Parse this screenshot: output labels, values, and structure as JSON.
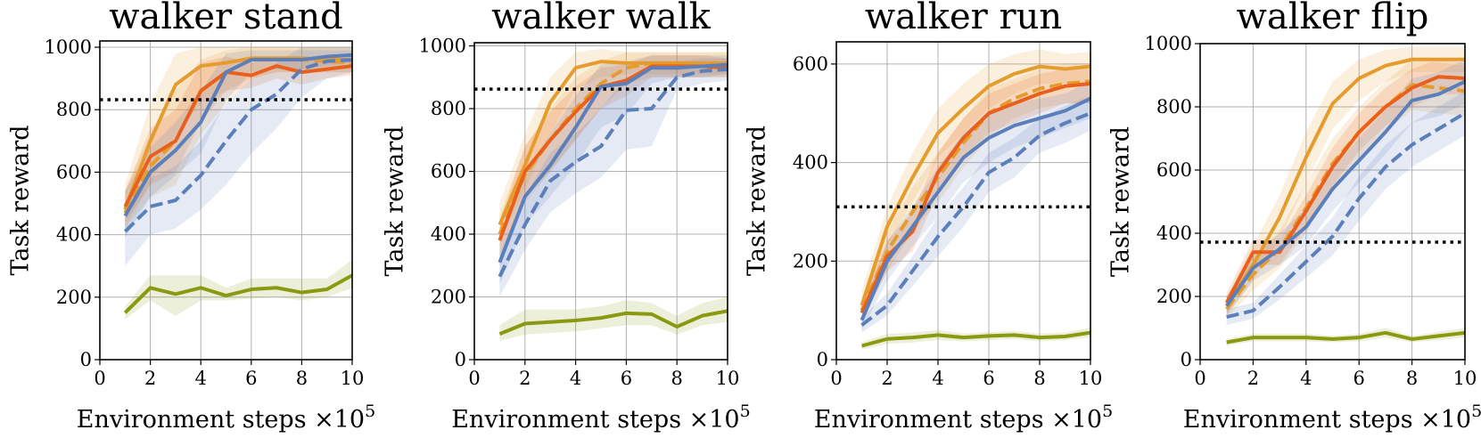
{
  "figure": {
    "xlabel": "Environment steps",
    "xlabel_suffix": "×10",
    "xlabel_exp": "5"
  },
  "chart_data": [
    {
      "type": "line",
      "title": "walker stand",
      "xlabel": "Environment steps ×10^5",
      "ylabel": "Task reward",
      "xlim": [
        0,
        10
      ],
      "ylim": [
        0,
        1020
      ],
      "xticks": [
        0,
        2,
        4,
        6,
        8,
        10
      ],
      "yticks": [
        0,
        200,
        400,
        600,
        800,
        1000
      ],
      "grid": true,
      "hline": 832,
      "x": [
        1,
        2,
        3,
        4,
        5,
        6,
        7,
        8,
        9,
        10
      ],
      "series": [
        {
          "name": "light orange solid",
          "color": "#e69c2c",
          "dash": "solid",
          "values": [
            480,
            700,
            880,
            940,
            950,
            965,
            965,
            965,
            960,
            960
          ],
          "lower": [
            420,
            560,
            720,
            820,
            860,
            900,
            920,
            920,
            920,
            920
          ],
          "upper": [
            560,
            820,
            980,
            1000,
            1000,
            1000,
            1000,
            1000,
            1000,
            1000
          ]
        },
        {
          "name": "light orange dashed",
          "color": "#e69c2c",
          "dash": "dashed",
          "values": [
            470,
            620,
            700,
            860,
            920,
            960,
            965,
            960,
            955,
            950
          ],
          "lower": [
            420,
            520,
            560,
            720,
            820,
            900,
            920,
            920,
            920,
            920
          ],
          "upper": [
            540,
            720,
            860,
            960,
            990,
            1000,
            1000,
            1000,
            1000,
            1000
          ]
        },
        {
          "name": "dark orange solid",
          "color": "#e8601c",
          "dash": "solid",
          "values": [
            490,
            650,
            700,
            860,
            920,
            910,
            940,
            920,
            930,
            940
          ],
          "lower": [
            440,
            560,
            600,
            760,
            860,
            870,
            900,
            880,
            900,
            910
          ],
          "upper": [
            540,
            740,
            800,
            950,
            970,
            950,
            970,
            960,
            960,
            970
          ]
        },
        {
          "name": "blue solid",
          "color": "#5b7fba",
          "dash": "solid",
          "values": [
            460,
            600,
            670,
            760,
            920,
            960,
            960,
            960,
            970,
            975
          ],
          "lower": [
            390,
            520,
            590,
            660,
            830,
            920,
            930,
            930,
            940,
            950
          ],
          "upper": [
            540,
            680,
            760,
            860,
            980,
            990,
            990,
            990,
            990,
            990
          ]
        },
        {
          "name": "blue dashed",
          "color": "#5b7fba",
          "dash": "dashed",
          "values": [
            410,
            490,
            510,
            590,
            700,
            800,
            850,
            930,
            955,
            960
          ],
          "lower": [
            300,
            400,
            420,
            480,
            560,
            660,
            740,
            840,
            900,
            920
          ],
          "upper": [
            500,
            580,
            620,
            700,
            820,
            900,
            950,
            1000,
            1000,
            1000
          ]
        },
        {
          "name": "olive solid",
          "color": "#8a9a10",
          "dash": "solid",
          "values": [
            150,
            230,
            210,
            230,
            205,
            225,
            230,
            215,
            225,
            270
          ],
          "lower": [
            130,
            190,
            140,
            190,
            190,
            195,
            200,
            190,
            200,
            230
          ],
          "upper": [
            170,
            270,
            270,
            270,
            230,
            260,
            260,
            260,
            260,
            320
          ]
        }
      ]
    },
    {
      "type": "line",
      "title": "walker walk",
      "xlabel": "Environment steps ×10^5",
      "ylabel": "Task reward",
      "xlim": [
        0,
        10
      ],
      "ylim": [
        0,
        1010
      ],
      "xticks": [
        0,
        2,
        4,
        6,
        8,
        10
      ],
      "yticks": [
        0,
        200,
        400,
        600,
        800,
        1000
      ],
      "grid": true,
      "hline": 862,
      "x": [
        1,
        2,
        3,
        4,
        5,
        6,
        7,
        8,
        9,
        10
      ],
      "series": [
        {
          "name": "light orange solid",
          "color": "#e69c2c",
          "dash": "solid",
          "values": [
            430,
            620,
            820,
            930,
            950,
            945,
            945,
            945,
            945,
            945
          ],
          "lower": [
            380,
            540,
            720,
            860,
            900,
            910,
            910,
            910,
            910,
            910
          ],
          "upper": [
            500,
            720,
            900,
            980,
            990,
            980,
            980,
            980,
            980,
            980
          ]
        },
        {
          "name": "light orange dashed",
          "color": "#e69c2c",
          "dash": "dashed",
          "values": [
            400,
            590,
            700,
            800,
            880,
            930,
            945,
            945,
            940,
            935
          ],
          "lower": [
            340,
            500,
            600,
            700,
            800,
            880,
            900,
            900,
            900,
            900
          ],
          "upper": [
            460,
            680,
            800,
            900,
            950,
            980,
            980,
            980,
            980,
            980
          ]
        },
        {
          "name": "dark orange solid",
          "color": "#e8601c",
          "dash": "solid",
          "values": [
            380,
            600,
            700,
            790,
            870,
            890,
            935,
            935,
            935,
            930
          ],
          "lower": [
            320,
            520,
            600,
            700,
            800,
            840,
            900,
            900,
            900,
            900
          ],
          "upper": [
            440,
            680,
            790,
            870,
            930,
            940,
            970,
            970,
            970,
            960
          ]
        },
        {
          "name": "blue solid",
          "color": "#5b7fba",
          "dash": "solid",
          "values": [
            310,
            520,
            620,
            740,
            870,
            880,
            930,
            930,
            935,
            940
          ],
          "lower": [
            240,
            430,
            520,
            620,
            740,
            780,
            880,
            900,
            900,
            910
          ],
          "upper": [
            380,
            600,
            720,
            840,
            940,
            950,
            970,
            970,
            970,
            970
          ]
        },
        {
          "name": "blue dashed",
          "color": "#5b7fba",
          "dash": "dashed",
          "values": [
            265,
            430,
            570,
            630,
            680,
            795,
            800,
            900,
            920,
            925
          ],
          "lower": [
            200,
            350,
            470,
            530,
            580,
            670,
            680,
            860,
            880,
            890
          ],
          "upper": [
            340,
            520,
            660,
            720,
            800,
            900,
            920,
            950,
            960,
            960
          ]
        },
        {
          "name": "olive solid",
          "color": "#8a9a10",
          "dash": "solid",
          "values": [
            82,
            115,
            120,
            125,
            133,
            148,
            145,
            105,
            140,
            155
          ],
          "lower": [
            60,
            80,
            85,
            90,
            100,
            110,
            110,
            80,
            110,
            120
          ],
          "upper": [
            110,
            160,
            160,
            160,
            170,
            190,
            180,
            140,
            180,
            200
          ]
        }
      ]
    },
    {
      "type": "line",
      "title": "walker run",
      "xlabel": "Environment steps ×10^5",
      "ylabel": "Task reward",
      "xlim": [
        0,
        10
      ],
      "ylim": [
        0,
        645
      ],
      "xticks": [
        0,
        2,
        4,
        6,
        8,
        10
      ],
      "yticks": [
        0,
        200,
        400,
        600
      ],
      "grid": true,
      "hline": 310,
      "x": [
        1,
        2,
        3,
        4,
        5,
        6,
        7,
        8,
        9,
        10
      ],
      "series": [
        {
          "name": "light orange solid",
          "color": "#e69c2c",
          "dash": "solid",
          "values": [
            110,
            270,
            370,
            460,
            510,
            555,
            580,
            595,
            590,
            595
          ],
          "lower": [
            90,
            230,
            320,
            410,
            460,
            510,
            540,
            560,
            560,
            560
          ],
          "upper": [
            140,
            310,
            420,
            510,
            560,
            600,
            620,
            630,
            620,
            625
          ]
        },
        {
          "name": "light orange dashed",
          "color": "#e69c2c",
          "dash": "dashed",
          "values": [
            100,
            220,
            300,
            370,
            440,
            500,
            530,
            550,
            560,
            565
          ],
          "lower": [
            80,
            180,
            260,
            320,
            390,
            450,
            490,
            510,
            520,
            520
          ],
          "upper": [
            120,
            260,
            350,
            420,
            490,
            550,
            570,
            590,
            600,
            600
          ]
        },
        {
          "name": "dark orange solid",
          "color": "#e8601c",
          "dash": "solid",
          "values": [
            95,
            210,
            260,
            380,
            450,
            500,
            520,
            540,
            555,
            560
          ],
          "lower": [
            75,
            180,
            220,
            340,
            410,
            460,
            480,
            500,
            520,
            520
          ],
          "upper": [
            115,
            240,
            300,
            420,
            490,
            540,
            560,
            580,
            590,
            595
          ]
        },
        {
          "name": "blue solid",
          "color": "#5b7fba",
          "dash": "solid",
          "values": [
            80,
            200,
            270,
            340,
            410,
            450,
            475,
            490,
            505,
            530
          ],
          "lower": [
            60,
            160,
            230,
            290,
            360,
            400,
            430,
            450,
            470,
            490
          ],
          "upper": [
            100,
            240,
            310,
            390,
            460,
            500,
            520,
            530,
            540,
            565
          ]
        },
        {
          "name": "blue dashed",
          "color": "#5b7fba",
          "dash": "dashed",
          "values": [
            70,
            110,
            180,
            250,
            310,
            380,
            410,
            455,
            480,
            500
          ],
          "lower": [
            55,
            90,
            150,
            210,
            270,
            340,
            370,
            420,
            440,
            465
          ],
          "upper": [
            85,
            135,
            210,
            290,
            350,
            420,
            450,
            490,
            515,
            535
          ]
        },
        {
          "name": "olive solid",
          "color": "#8a9a10",
          "dash": "solid",
          "values": [
            28,
            42,
            45,
            50,
            45,
            48,
            50,
            45,
            47,
            55
          ],
          "lower": [
            20,
            32,
            35,
            40,
            37,
            40,
            42,
            37,
            40,
            45
          ],
          "upper": [
            36,
            52,
            55,
            60,
            53,
            56,
            58,
            53,
            55,
            65
          ]
        }
      ]
    },
    {
      "type": "line",
      "title": "walker flip",
      "xlabel": "Environment steps ×10^5",
      "ylabel": "Task reward",
      "xlim": [
        0,
        10
      ],
      "ylim": [
        0,
        1000
      ],
      "xticks": [
        0,
        2,
        4,
        6,
        8,
        10
      ],
      "yticks": [
        0,
        200,
        400,
        600,
        800,
        1000
      ],
      "grid": true,
      "hline": 372,
      "x": [
        1,
        2,
        3,
        4,
        5,
        6,
        7,
        8,
        9,
        10
      ],
      "series": [
        {
          "name": "light orange solid",
          "color": "#e69c2c",
          "dash": "solid",
          "values": [
            170,
            300,
            450,
            640,
            810,
            890,
            930,
            950,
            950,
            950
          ],
          "lower": [
            140,
            250,
            380,
            560,
            730,
            820,
            880,
            910,
            910,
            910
          ],
          "upper": [
            200,
            360,
            520,
            720,
            880,
            950,
            980,
            990,
            990,
            990
          ]
        },
        {
          "name": "light orange dashed",
          "color": "#e69c2c",
          "dash": "dashed",
          "values": [
            160,
            270,
            350,
            480,
            620,
            720,
            800,
            870,
            860,
            850
          ],
          "lower": [
            130,
            220,
            290,
            400,
            540,
            640,
            720,
            790,
            780,
            770
          ],
          "upper": [
            190,
            320,
            410,
            560,
            700,
            800,
            880,
            950,
            940,
            930
          ]
        },
        {
          "name": "dark orange solid",
          "color": "#e8601c",
          "dash": "solid",
          "values": [
            180,
            340,
            340,
            470,
            610,
            720,
            800,
            860,
            895,
            890
          ],
          "lower": [
            150,
            300,
            300,
            420,
            550,
            660,
            740,
            800,
            840,
            840
          ],
          "upper": [
            210,
            380,
            380,
            520,
            670,
            780,
            860,
            920,
            950,
            940
          ]
        },
        {
          "name": "blue solid",
          "color": "#5b7fba",
          "dash": "solid",
          "values": [
            170,
            290,
            350,
            420,
            540,
            630,
            720,
            820,
            840,
            880
          ],
          "lower": [
            140,
            250,
            300,
            360,
            470,
            560,
            650,
            750,
            770,
            810
          ],
          "upper": [
            200,
            330,
            400,
            480,
            610,
            700,
            790,
            890,
            910,
            950
          ]
        },
        {
          "name": "blue dashed",
          "color": "#5b7fba",
          "dash": "dashed",
          "values": [
            135,
            155,
            230,
            310,
            390,
            510,
            610,
            680,
            730,
            780
          ],
          "lower": [
            110,
            130,
            190,
            260,
            330,
            440,
            540,
            610,
            660,
            710
          ],
          "upper": [
            160,
            180,
            270,
            360,
            450,
            580,
            680,
            750,
            800,
            850
          ]
        },
        {
          "name": "olive solid",
          "color": "#8a9a10",
          "dash": "solid",
          "values": [
            55,
            70,
            70,
            70,
            65,
            70,
            85,
            65,
            75,
            85
          ],
          "lower": [
            45,
            58,
            58,
            58,
            55,
            58,
            70,
            55,
            62,
            70
          ],
          "upper": [
            65,
            82,
            82,
            82,
            75,
            82,
            100,
            75,
            88,
            100
          ]
        }
      ]
    }
  ]
}
